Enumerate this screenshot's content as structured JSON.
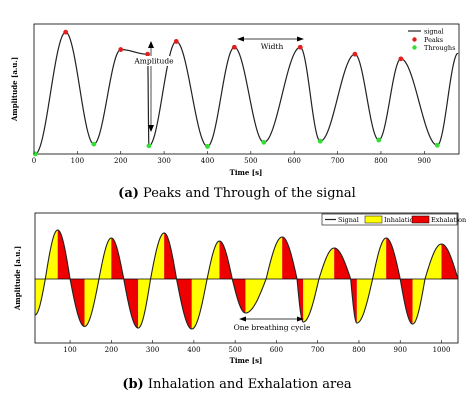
{
  "chart_data": [
    {
      "type": "line",
      "caption_label": "(a)",
      "caption_text": "Peaks and Through of the signal",
      "xlabel": "Time [s]",
      "ylabel": "Amplitude [a.u.]",
      "xlim": [
        0,
        980
      ],
      "xticks": [
        0,
        100,
        200,
        300,
        400,
        500,
        600,
        700,
        800,
        900
      ],
      "grid": false,
      "legend_position": "top-right",
      "legend": [
        "signal",
        "Peaks",
        "Throughs"
      ],
      "annotations": {
        "amplitude": "Amplitude",
        "width": "Width"
      },
      "series": [
        {
          "name": "signal",
          "color": "#222222"
        },
        {
          "name": "Peaks",
          "color": "#e02020",
          "x": [
            73,
            200,
            262,
            328,
            462,
            614,
            740,
            846
          ],
          "y": [
            0.98,
            0.68,
            0.6,
            0.82,
            0.72,
            0.72,
            0.6,
            0.52
          ]
        },
        {
          "name": "Throughs",
          "color": "#33dd33",
          "x": [
            3,
            138,
            265,
            400,
            530,
            660,
            795,
            930
          ],
          "y": [
            -1.12,
            -0.95,
            -0.98,
            -0.99,
            -0.92,
            -0.9,
            -0.88,
            -0.97
          ]
        }
      ]
    },
    {
      "type": "area",
      "caption_label": "(b)",
      "caption_text": "Inhalation and Exhalation area",
      "xlabel": "Time [s]",
      "ylabel": "Amplitude [a.u.]",
      "xlim": [
        15,
        1040
      ],
      "xticks": [
        100,
        200,
        300,
        400,
        500,
        600,
        700,
        800,
        900,
        1000
      ],
      "grid": false,
      "legend_position": "top-right",
      "legend": [
        "Signal",
        "Inhalation",
        "Exhalation"
      ],
      "annotations": {
        "cycle": "One breathing cycle"
      },
      "colors": {
        "inhalation": "#ffff00",
        "exhalation": "#ee0000",
        "signal": "#222222"
      }
    }
  ]
}
